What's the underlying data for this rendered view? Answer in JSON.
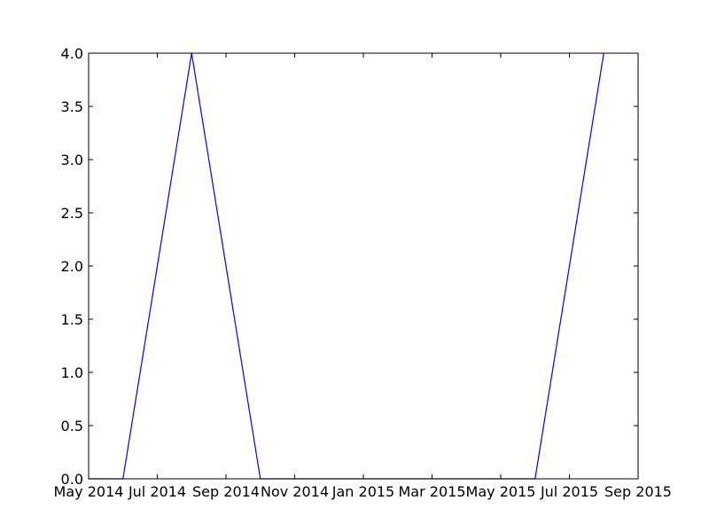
{
  "chart_data": {
    "type": "line",
    "title": "",
    "xlabel": "",
    "ylabel": "",
    "x_tick_labels": [
      "May 2014",
      "Jul 2014",
      "Sep 2014",
      "Nov 2014",
      "Jan 2015",
      "Mar 2015",
      "May 2015",
      "Jul 2015",
      "Sep 2015"
    ],
    "y_tick_labels": [
      "0.0",
      "0.5",
      "1.0",
      "1.5",
      "2.0",
      "2.5",
      "3.0",
      "3.5",
      "4.0"
    ],
    "y_ticks": [
      0,
      0.5,
      1.0,
      1.5,
      2.0,
      2.5,
      3.0,
      3.5,
      4.0
    ],
    "ylim": [
      0,
      4.0
    ],
    "xlim": [
      "2014-05",
      "2015-09"
    ],
    "grid": false,
    "series": [
      {
        "color": "#0000ff",
        "x": [
          "2014-05",
          "2014-06",
          "2014-07",
          "2014-08",
          "2014-09",
          "2014-10",
          "2014-11",
          "2014-12",
          "2015-01",
          "2015-02",
          "2015-03",
          "2015-04",
          "2015-05",
          "2015-06",
          "2015-07",
          "2015-08"
        ],
        "values": [
          0,
          0,
          2,
          4,
          2,
          0,
          0,
          0,
          0,
          0,
          0,
          0,
          0,
          0,
          2,
          4
        ]
      }
    ]
  }
}
